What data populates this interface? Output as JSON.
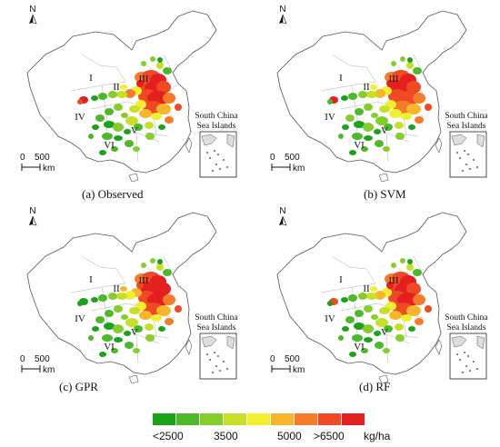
{
  "panels": [
    {
      "caption": "(a) Observed"
    },
    {
      "caption": "(b) SVM"
    },
    {
      "caption": "(c) GPR"
    },
    {
      "caption": "(d) RF"
    }
  ],
  "north_label": "N",
  "scale_bar": {
    "zero": "0",
    "distance": "500",
    "unit": "km"
  },
  "regions": [
    "I",
    "II",
    "III",
    "IV",
    "V",
    "VI"
  ],
  "inset_label_line1": "South China",
  "inset_label_line2": "Sea Islands",
  "legend": {
    "colors": [
      "#1aa31a",
      "#4cb82a",
      "#86cc2e",
      "#c8df2a",
      "#f2ee30",
      "#f7b52c",
      "#f47c28",
      "#ee4a26",
      "#e41f1f"
    ],
    "labels": [
      "<2500",
      "3500",
      "5000",
      ">6500",
      "kg/ha"
    ]
  }
}
